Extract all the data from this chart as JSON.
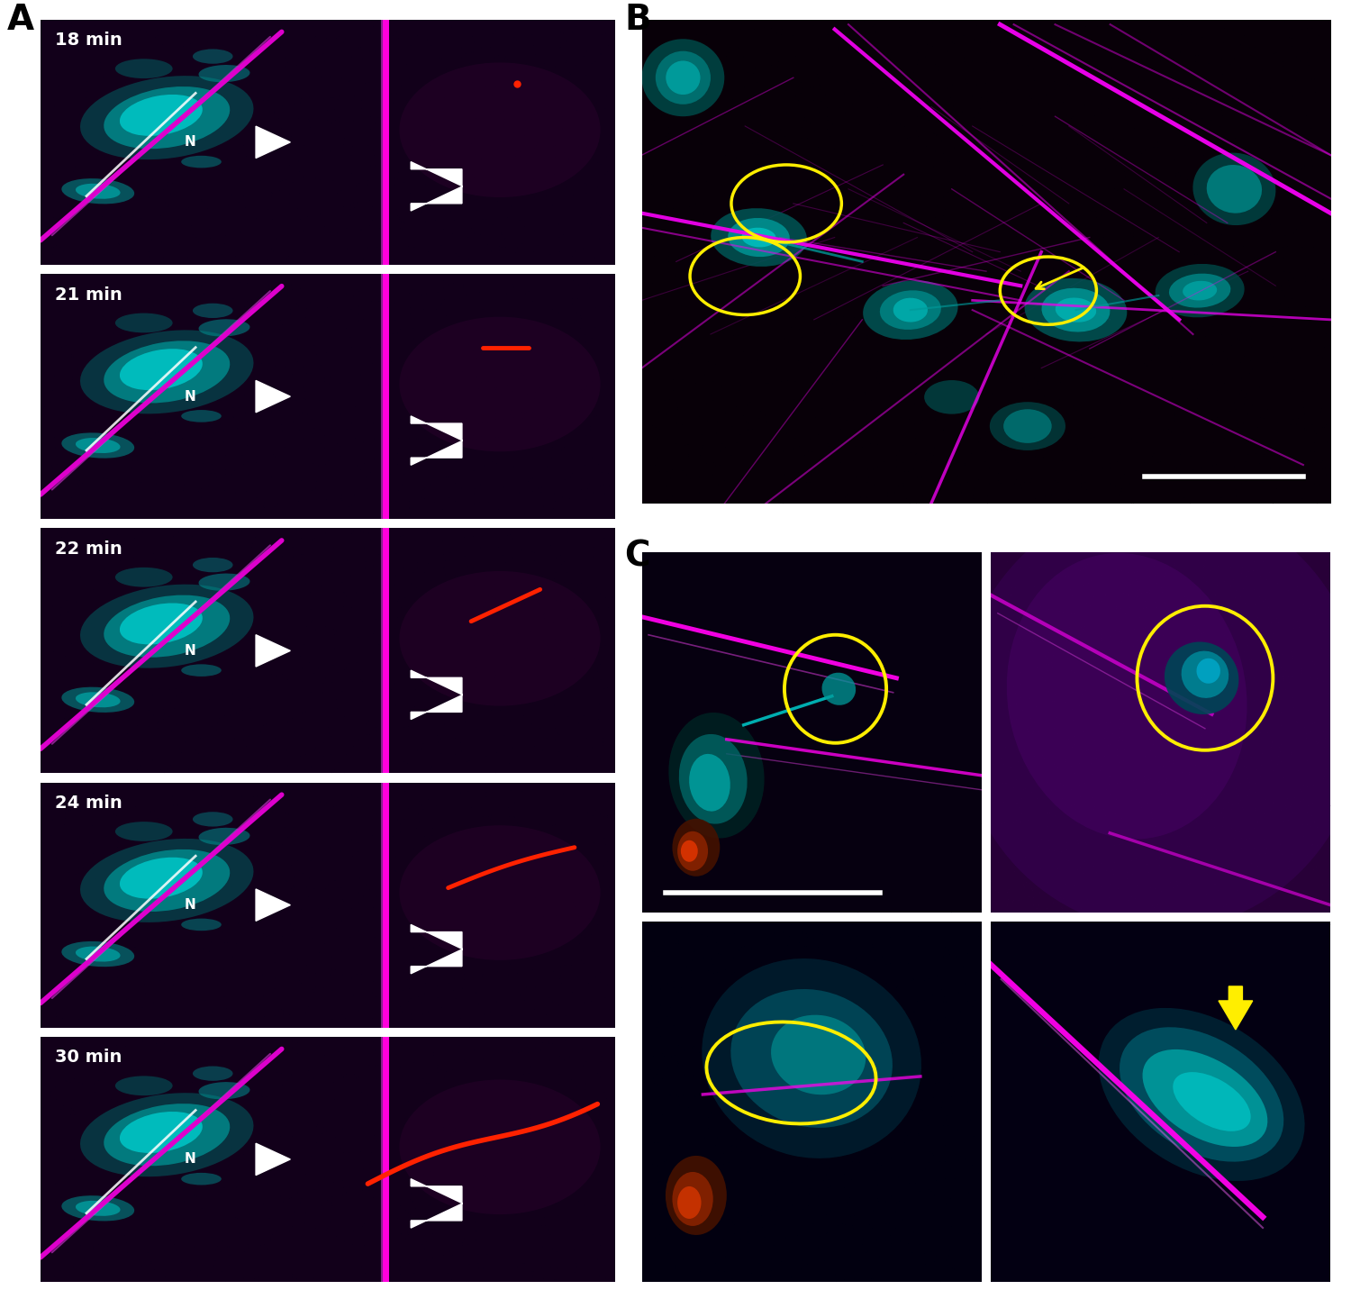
{
  "figure_size": [
    15.0,
    14.52
  ],
  "dpi": 100,
  "background_color": "#ffffff",
  "panel_A_label": "A",
  "panel_B_label": "B",
  "panel_C_label": "C",
  "panel_A_times": [
    "18 min",
    "21 min",
    "22 min",
    "24 min",
    "30 min"
  ],
  "label_fontsize": 28,
  "time_fontsize": 14,
  "panel_A_bg": "#12001a",
  "panel_B_bg": "#080008",
  "panel_C_bg": "#050010",
  "magenta": "#ff00ee",
  "cyan": "#00cccc",
  "white": "#ffffff",
  "yellow": "#ffee00",
  "red": "#ff2200"
}
